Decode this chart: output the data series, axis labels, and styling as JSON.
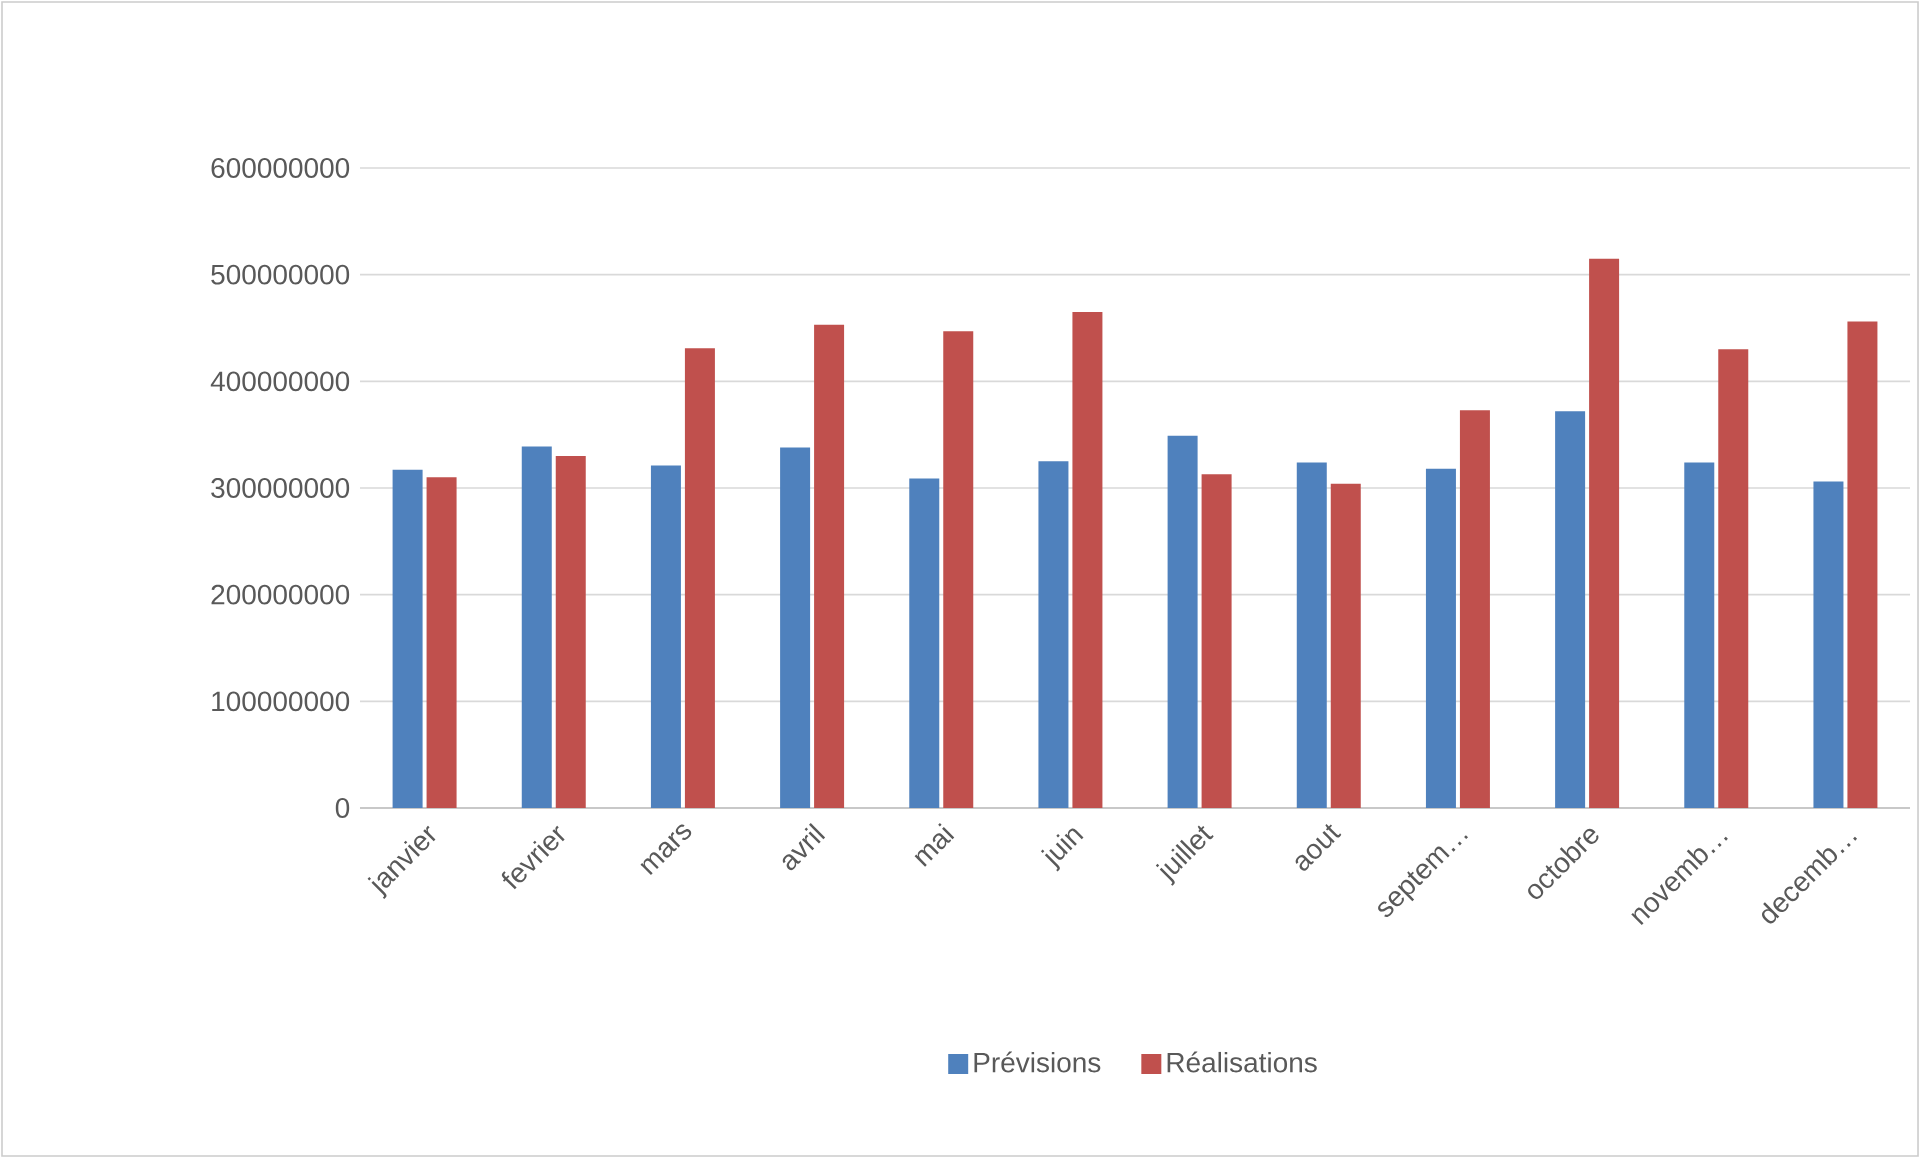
{
  "chart_data": {
    "type": "bar",
    "categories": [
      "janvier",
      "fevrier",
      "mars",
      "avril",
      "mai",
      "juin",
      "juillet",
      "aout",
      "septem…",
      "octobre",
      "novemb…",
      "decemb…"
    ],
    "series": [
      {
        "name": "Prévisions",
        "color": "#4f81bd",
        "values": [
          317000000,
          339000000,
          321000000,
          338000000,
          309000000,
          325000000,
          349000000,
          324000000,
          318000000,
          372000000,
          324000000,
          306000000
        ]
      },
      {
        "name": "Réalisations",
        "color": "#c0504d",
        "values": [
          310000000,
          330000000,
          431000000,
          453000000,
          447000000,
          465000000,
          313000000,
          304000000,
          373000000,
          515000000,
          430000000,
          456000000
        ]
      }
    ],
    "ylim": [
      0,
      600000000
    ],
    "yticks": [
      0,
      100000000,
      200000000,
      300000000,
      400000000,
      500000000,
      600000000
    ],
    "grid": "y",
    "legend": "bottom"
  }
}
